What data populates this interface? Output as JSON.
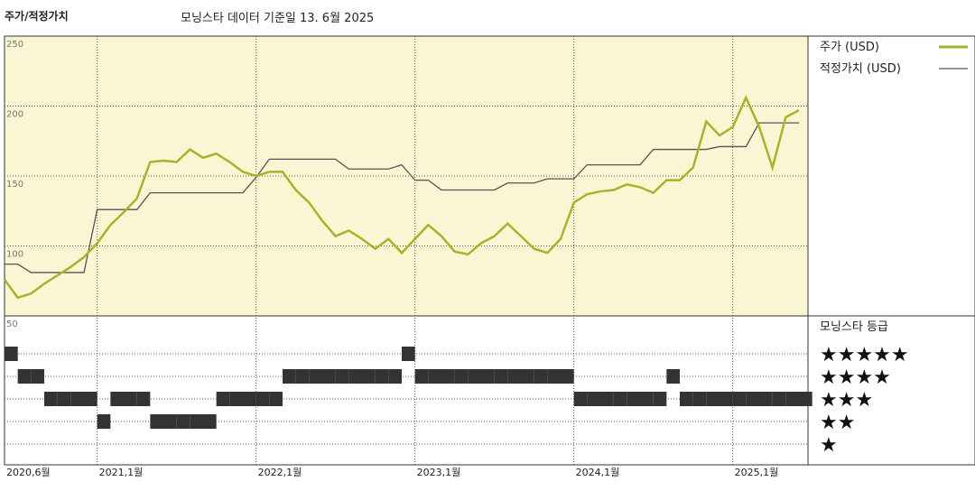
{
  "chart_data": {
    "type": "line",
    "title": "주가/적정가치",
    "subtitle": "모닝스타 데이터 기준일 13. 6월 2025",
    "x": [
      "2020-06",
      "2020-07",
      "2020-08",
      "2020-09",
      "2020-10",
      "2020-11",
      "2020-12",
      "2021-01",
      "2021-02",
      "2021-03",
      "2021-04",
      "2021-05",
      "2021-06",
      "2021-07",
      "2021-08",
      "2021-09",
      "2021-10",
      "2021-11",
      "2021-12",
      "2022-01",
      "2022-02",
      "2022-03",
      "2022-04",
      "2022-05",
      "2022-06",
      "2022-07",
      "2022-08",
      "2022-09",
      "2022-10",
      "2022-11",
      "2022-12",
      "2023-01",
      "2023-02",
      "2023-03",
      "2023-04",
      "2023-05",
      "2023-06",
      "2023-07",
      "2023-08",
      "2023-09",
      "2023-10",
      "2023-11",
      "2023-12",
      "2024-01",
      "2024-02",
      "2024-03",
      "2024-04",
      "2024-05",
      "2024-06",
      "2024-07",
      "2024-08",
      "2024-09",
      "2024-10",
      "2024-11",
      "2024-12",
      "2025-01",
      "2025-02",
      "2025-03",
      "2025-04",
      "2025-05",
      "2025-06"
    ],
    "xlim": [
      "2020-06",
      "2025-06"
    ],
    "xticks": [
      {
        "value": "2020-06",
        "label": "2020,6월"
      },
      {
        "value": "2021-01",
        "label": "2021,1월"
      },
      {
        "value": "2022-01",
        "label": "2022,1월"
      },
      {
        "value": "2023-01",
        "label": "2023,1월"
      },
      {
        "value": "2024-01",
        "label": "2024,1월"
      },
      {
        "value": "2025-01",
        "label": "2025,1월"
      }
    ],
    "ylim": [
      50,
      250
    ],
    "yticks": [
      50,
      100,
      150,
      200,
      250
    ],
    "series": [
      {
        "name": "주가 (USD)",
        "color": "#a9b22a",
        "values": [
          76,
          63,
          66,
          73,
          79,
          85,
          92,
          102,
          115,
          124,
          134,
          160,
          161,
          160,
          169,
          163,
          166,
          160,
          153,
          150,
          153,
          153,
          140,
          131,
          118,
          107,
          111,
          105,
          98,
          105,
          95,
          105,
          115,
          107,
          96,
          94,
          102,
          107,
          116,
          107,
          98,
          95,
          105,
          131,
          137,
          139,
          140,
          144,
          142,
          138,
          147,
          147,
          156,
          189,
          179,
          185,
          206,
          185,
          156,
          192,
          197
        ]
      },
      {
        "name": "적정가치 (USD)",
        "color": "#555555",
        "values": [
          87,
          87,
          81,
          81,
          81,
          81,
          81,
          126,
          126,
          126,
          126,
          138,
          138,
          138,
          138,
          138,
          138,
          138,
          138,
          149,
          162,
          162,
          162,
          162,
          162,
          162,
          155,
          155,
          155,
          155,
          158,
          147,
          147,
          140,
          140,
          140,
          140,
          140,
          145,
          145,
          145,
          148,
          148,
          148,
          158,
          158,
          158,
          158,
          158,
          169,
          169,
          169,
          169,
          169,
          171,
          171,
          171,
          188,
          188,
          188,
          188
        ]
      }
    ],
    "ratings": {
      "title": "모닝스타 등급",
      "color": "#333333",
      "rows": [
        {
          "value": 5,
          "label": "★★★★★"
        },
        {
          "value": 4,
          "label": "★★★★"
        },
        {
          "value": 3,
          "label": "★★★"
        },
        {
          "value": 2,
          "label": "★★"
        },
        {
          "value": 1,
          "label": "★"
        }
      ],
      "values": [
        5,
        4,
        4,
        3,
        3,
        3,
        3,
        2,
        3,
        3,
        3,
        2,
        2,
        2,
        2,
        2,
        3,
        3,
        3,
        3,
        3,
        4,
        4,
        4,
        4,
        4,
        4,
        4,
        4,
        4,
        5,
        4,
        4,
        4,
        4,
        4,
        4,
        4,
        4,
        4,
        4,
        4,
        4,
        3,
        3,
        3,
        3,
        3,
        3,
        3,
        4,
        3,
        3,
        3,
        3,
        3,
        3,
        3,
        3,
        3,
        3
      ]
    }
  }
}
